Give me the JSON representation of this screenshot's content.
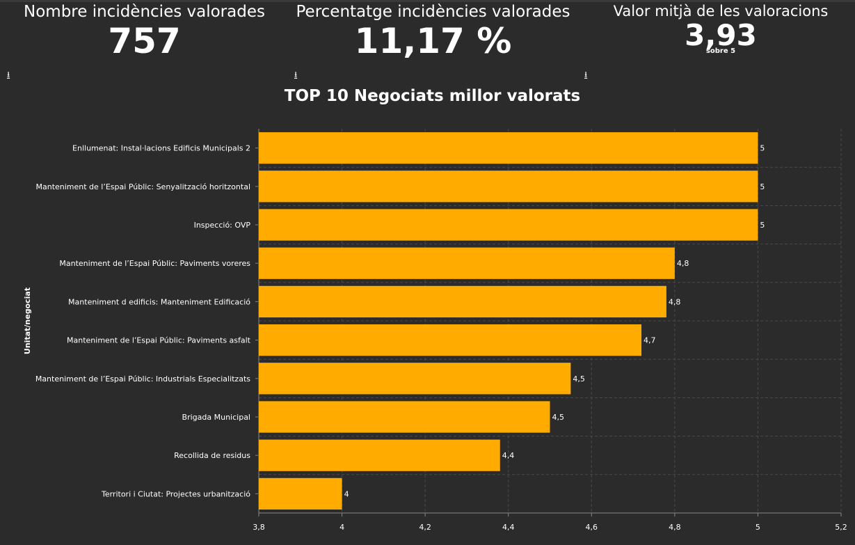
{
  "kpis": [
    {
      "title": "Nombre incidències valorades",
      "value": "757"
    },
    {
      "title": "Percentatge incidències valorades",
      "value": "11,17 %"
    },
    {
      "title": "Valor mitjà de les valoracions",
      "value": "3,93",
      "subtitle": "sobre 5"
    }
  ],
  "download_icon": "download-icon",
  "colors": {
    "background": "#2b2b2b",
    "bar": "#ffab00"
  },
  "chart_data": {
    "type": "bar",
    "orientation": "horizontal",
    "title": "TOP 10 Negociats millor valorats",
    "ylabel": "Unitat/negociat",
    "xlabel": "",
    "xlim": [
      3.8,
      5.2
    ],
    "xticks": [
      "3,8",
      "4",
      "4,2",
      "4,4",
      "4,6",
      "4,8",
      "5",
      "5,2"
    ],
    "grid": true,
    "categories": [
      "Enllumenat: Instal·lacions Edificis Municipals 2",
      "Manteniment de l’Espai Públic: Senyalització horitzontal",
      "Inspecció: OVP",
      "Manteniment de l’Espai Públic: Paviments voreres",
      "Manteniment d edificis: Manteniment Edificació",
      "Manteniment de l’Espai Públic: Paviments asfalt",
      "Manteniment de l’Espai Públic: Industrials Especialitzats",
      "Brigada Municipal",
      "Recollida de residus",
      "Territori i Ciutat: Projectes urbanització"
    ],
    "values": [
      5,
      5,
      5,
      4.8,
      4.78,
      4.72,
      4.55,
      4.5,
      4.38,
      4.0
    ],
    "data_labels": [
      "5",
      "5",
      "5",
      "4,8",
      "4,8",
      "4,7",
      "4,5",
      "4,5",
      "4,4",
      "4"
    ]
  }
}
